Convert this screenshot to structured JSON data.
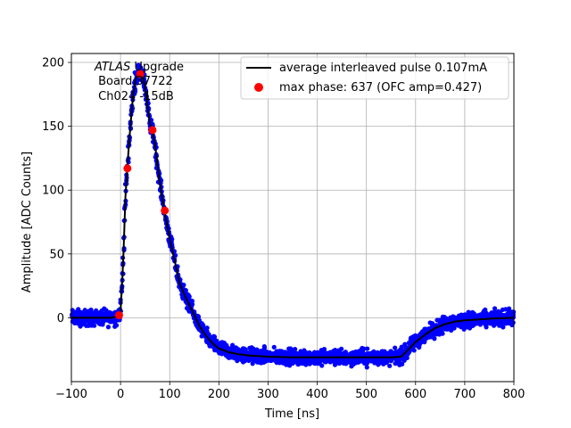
{
  "chart_data": {
    "type": "scatter",
    "title": "",
    "xlabel": "Time [ns]",
    "ylabel": "Amplitude [ADC Counts]",
    "xlim": [
      -100,
      800
    ],
    "ylim": [
      -50,
      207
    ],
    "xticks": [
      -100,
      0,
      100,
      200,
      300,
      400,
      500,
      600,
      700,
      800
    ],
    "xtick_labels": [
      "−100",
      "0",
      "100",
      "200",
      "300",
      "400",
      "500",
      "600",
      "700",
      "800"
    ],
    "yticks": [
      0,
      50,
      100,
      150,
      200
    ],
    "ytick_labels": [
      "0",
      "50",
      "100",
      "150",
      "200"
    ],
    "grid": true,
    "annotation": {
      "italic": "ATLAS",
      "rest": " Upgrade",
      "line2": " Board 37722",
      "line3": " Ch024 -15dB"
    },
    "legend": {
      "placement": "top-right",
      "entries": [
        {
          "label": "average interleaved pulse 0.107mA",
          "color": "#000000",
          "marker": "line"
        },
        {
          "label": "max phase: 637 (OFC amp=0.427)",
          "color": "#ff0000",
          "marker": "circle"
        }
      ]
    },
    "series": [
      {
        "name": "average interleaved pulse 0.107mA",
        "color": "#000000",
        "x": [
          -100,
          -20,
          -8,
          0,
          5,
          10,
          15,
          20,
          25,
          30,
          35,
          40,
          45,
          50,
          55,
          60,
          65,
          70,
          75,
          80,
          90,
          100,
          110,
          120,
          130,
          140,
          150,
          160,
          170,
          180,
          190,
          200,
          220,
          240,
          260,
          280,
          300,
          350,
          400,
          450,
          500,
          550,
          570,
          580,
          590,
          600,
          620,
          640,
          660,
          680,
          700,
          720,
          740,
          760,
          780,
          800
        ],
        "y": [
          0,
          0,
          1,
          5,
          40,
          95,
          125,
          150,
          172,
          186,
          192,
          194,
          190,
          180,
          165,
          152,
          146,
          136,
          120,
          105,
          82,
          62,
          45,
          27,
          18,
          10,
          2,
          -6,
          -12,
          -17,
          -21,
          -24,
          -27,
          -28.5,
          -29.5,
          -30,
          -30.5,
          -31,
          -31,
          -31,
          -31,
          -31,
          -30.5,
          -27,
          -23,
          -19,
          -13,
          -8,
          -5,
          -3,
          -2,
          -1.5,
          -1,
          -0.5,
          -0.3,
          0
        ]
      },
      {
        "name": "samples (scatter)",
        "color": "#0000ff",
        "spread": 5
      },
      {
        "name": "max phase: 637 (OFC amp=0.427)",
        "color": "#ff0000",
        "x": [
          -3,
          14,
          40,
          65,
          90
        ],
        "y": [
          2,
          117,
          191,
          147,
          84
        ]
      }
    ]
  }
}
